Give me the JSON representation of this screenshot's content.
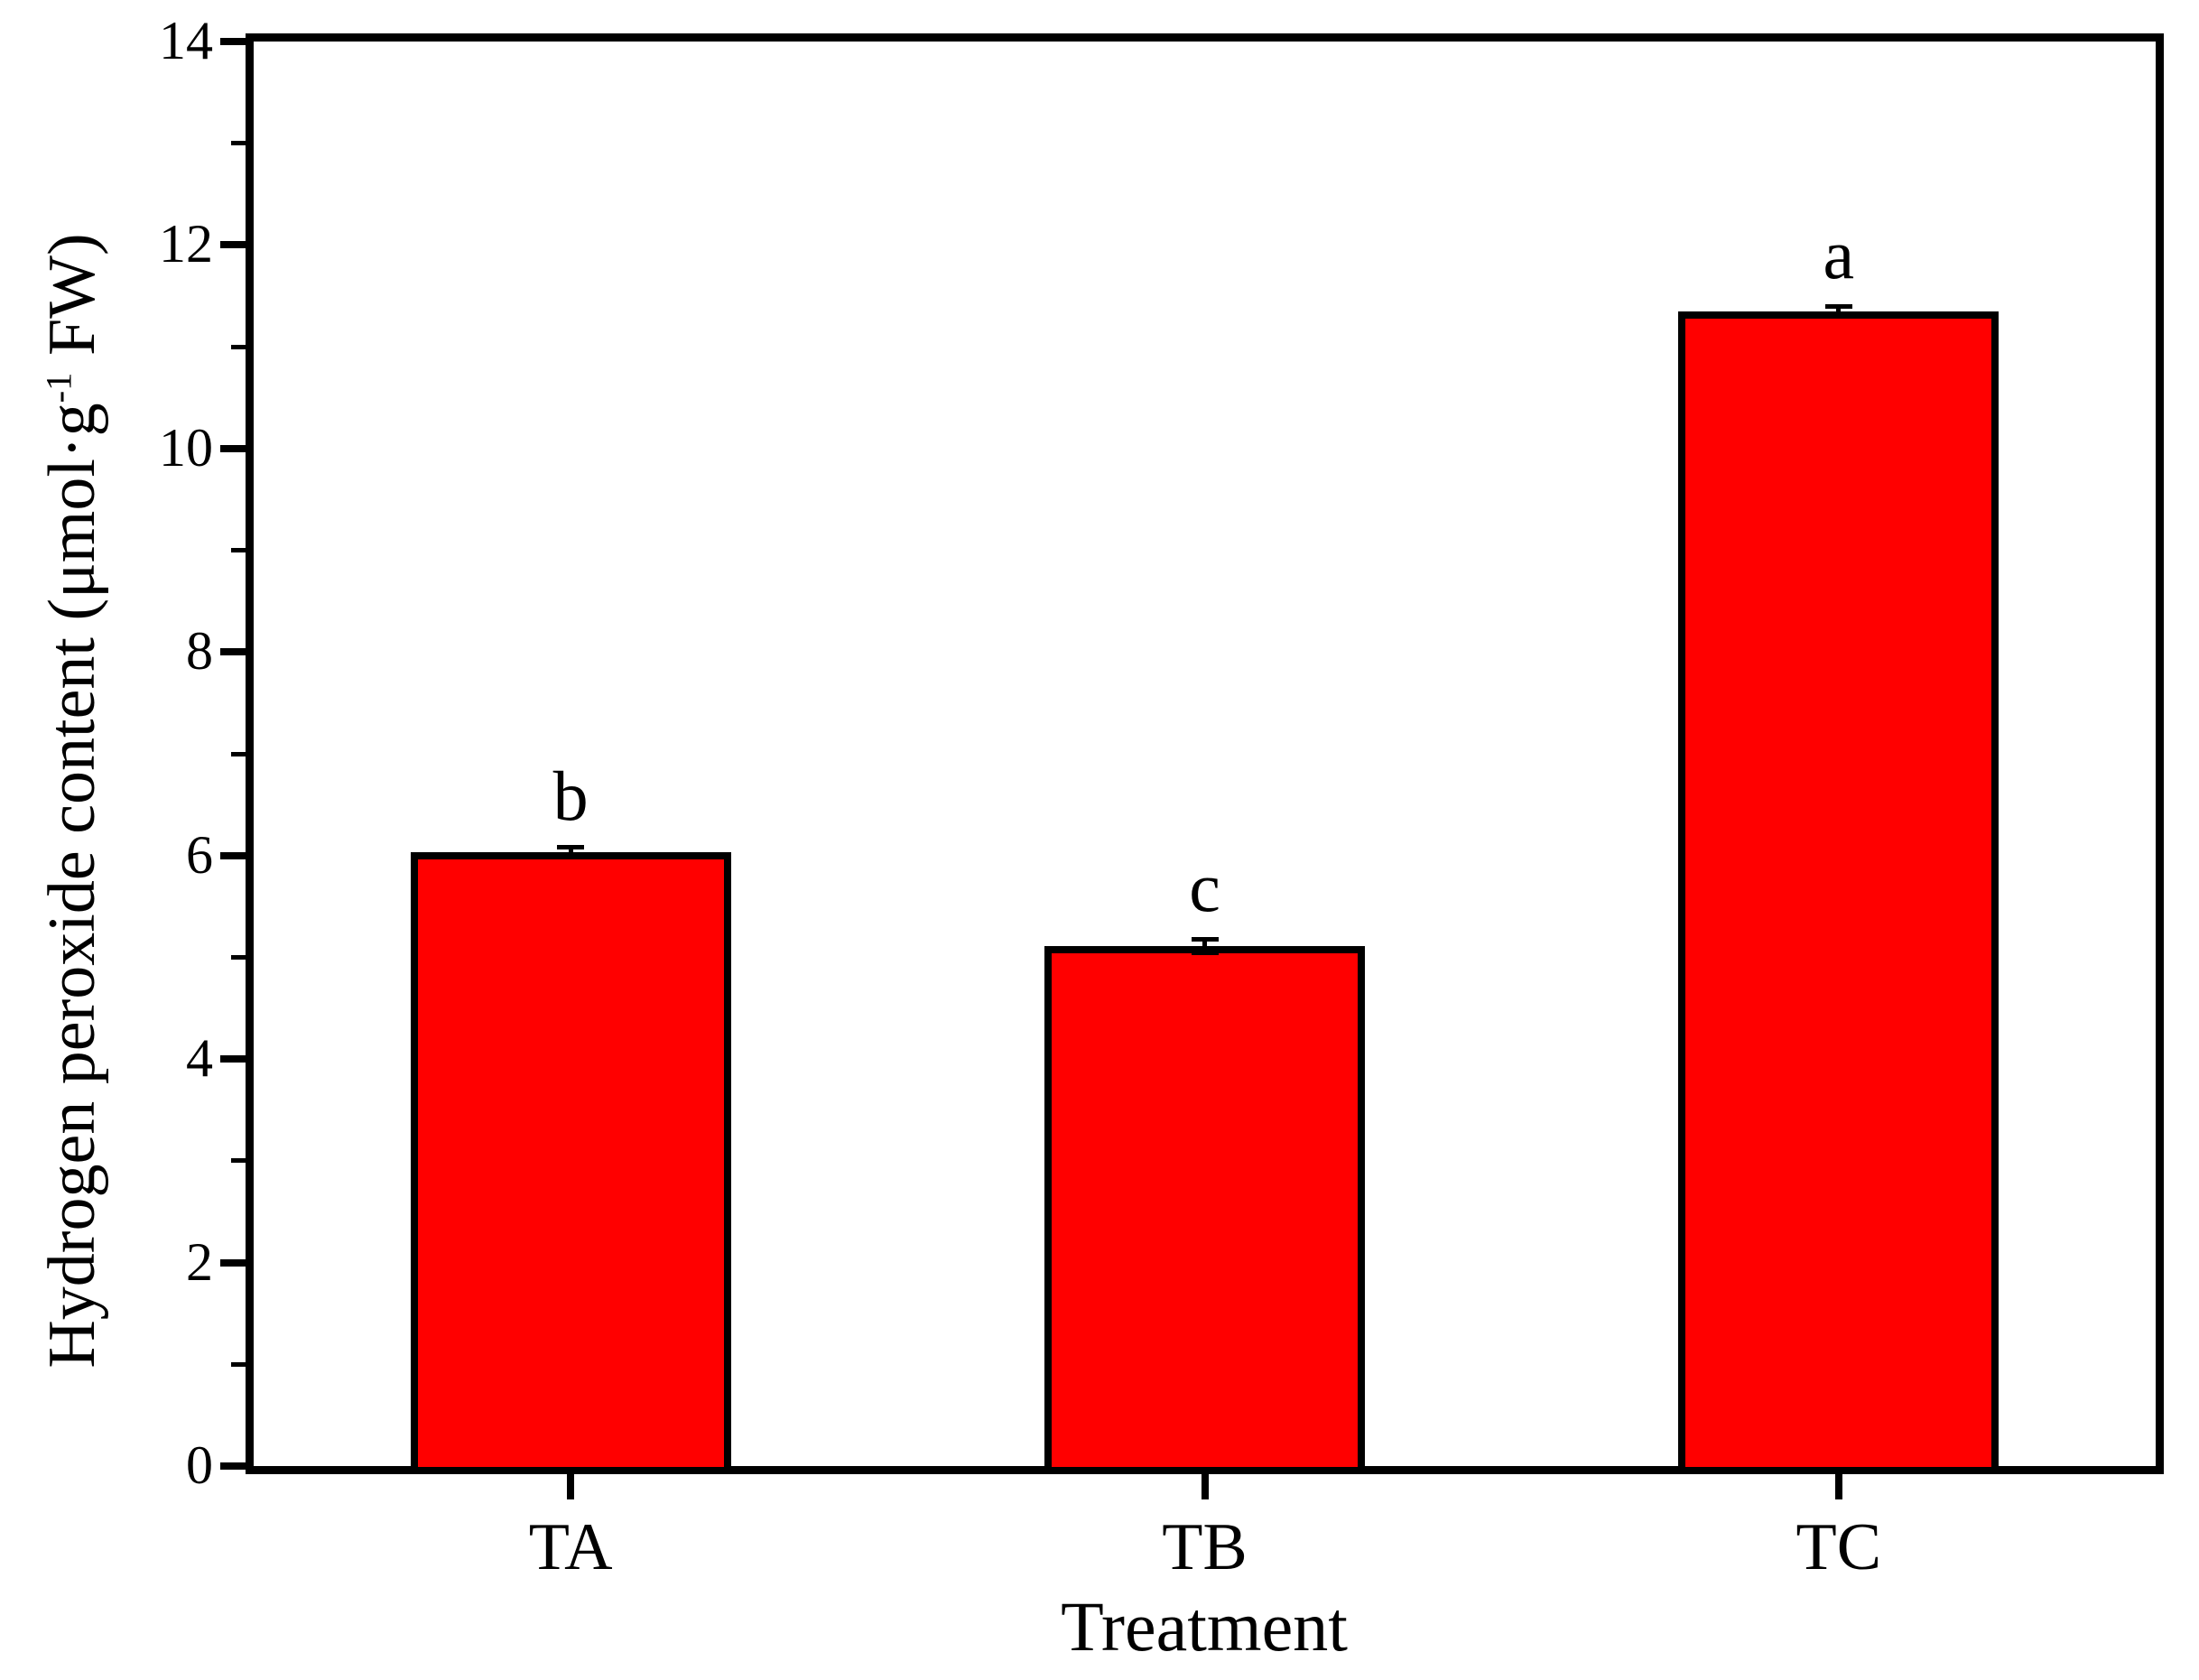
{
  "chart_data": {
    "type": "bar",
    "title": "",
    "xlabel": "Treatment",
    "ylabel": "Hydrogen peroxide content (μmol·g⁻¹ FW)",
    "ylabel_parts": {
      "pre": "Hydrogen peroxide content (μmol·g",
      "sup": "-1",
      "post": " FW)"
    },
    "categories": [
      "TA",
      "TB",
      "TC"
    ],
    "values": [
      6.03,
      5.11,
      11.35
    ],
    "errors": [
      0.05,
      0.07,
      0.05
    ],
    "sig_letters": [
      "b",
      "c",
      "a"
    ],
    "ylim": [
      0,
      14
    ],
    "yticks": [
      0,
      2,
      4,
      6,
      8,
      10,
      12,
      14
    ],
    "yticks_minor": [
      1,
      3,
      5,
      7,
      9,
      11,
      13
    ],
    "bar_fill_color": "#FF0000",
    "bar_edge_color": "#000000",
    "axis_color": "#000000",
    "grid": false,
    "legend": null
  }
}
